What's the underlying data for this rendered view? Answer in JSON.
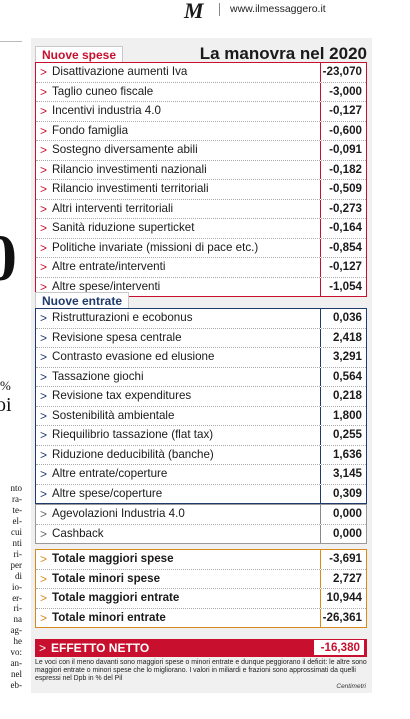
{
  "masthead": {
    "logo": "M",
    "site": "www.ilmessaggero.it"
  },
  "left_fragment": {
    "big_number": "0",
    "small_text": "%",
    "heading_text": "oi",
    "text_lines": [
      "nto",
      "ra-",
      "te-",
      "el-",
      "cui",
      "nti",
      "ri-",
      "per",
      "di",
      "io-",
      "er-",
      "ri-",
      "na",
      "ag-",
      "he",
      "vo:",
      "an-",
      "nel",
      "eb-"
    ]
  },
  "infographic": {
    "spese_tab": "Nuove spese",
    "title": "La manovra nel 2020",
    "spese": [
      {
        "label": "Disattivazione aumenti Iva",
        "value": "-23,070"
      },
      {
        "label": "Taglio cuneo fiscale",
        "value": "-3,000"
      },
      {
        "label": "Incentivi industria 4.0",
        "value": "-0,127"
      },
      {
        "label": "Fondo famiglia",
        "value": "-0,600"
      },
      {
        "label": "Sostegno diversamente abili",
        "value": "-0,091"
      },
      {
        "label": "Rilancio investimenti nazionali",
        "value": "-0,182"
      },
      {
        "label": "Rilancio investimenti territoriali",
        "value": "-0,509"
      },
      {
        "label": "Altri interventi territoriali",
        "value": "-0,273"
      },
      {
        "label": "Sanità riduzione superticket",
        "value": "-0,164"
      },
      {
        "label": "Politiche invariate (missioni di pace etc.)",
        "value": "-0,854"
      },
      {
        "label": "Altre entrate/interventi",
        "value": "-0,127"
      },
      {
        "label": "Altre spese/interventi",
        "value": "-1,054"
      }
    ],
    "entrate_tab": "Nuove entrate",
    "entrate": [
      {
        "label": "Ristrutturazioni e ecobonus",
        "value": "0,036"
      },
      {
        "label": "Revisione spesa centrale",
        "value": "2,418"
      },
      {
        "label": "Contrasto evasione ed elusione",
        "value": "3,291"
      },
      {
        "label": "Tassazione giochi",
        "value": "0,564"
      },
      {
        "label": "Revisione tax expenditures",
        "value": "0,218"
      },
      {
        "label": "Sostenibilità ambientale",
        "value": "1,800"
      },
      {
        "label": "Riequilibrio tassazione (flat tax)",
        "value": "0,255"
      },
      {
        "label": "Riduzione deducibilità (banche)",
        "value": "1,636"
      },
      {
        "label": "Altre entrate/coperture",
        "value": "3,145"
      },
      {
        "label": "Altre spese/coperture",
        "value": "0,309"
      }
    ],
    "altre": [
      {
        "label": "Agevolazioni Industria 4.0",
        "value": "0,000"
      },
      {
        "label": "Cashback",
        "value": "0,000"
      }
    ],
    "totali": [
      {
        "label": "Totale maggiori spese",
        "value": "-3,691"
      },
      {
        "label": "Totale minori spese",
        "value": "2,727"
      },
      {
        "label": "Totale maggiori entrate",
        "value": "10,944"
      },
      {
        "label": "Totale minori entrate",
        "value": "-26,361"
      }
    ],
    "effetto": {
      "label": "EFFETTO NETTO",
      "value": "-16,380"
    },
    "note": "Le voci con il meno davanti sono maggiori spese o minori entrate e dunque peggiorano il deficit: le altre sono maggiori entrate o minori spese che lo migliorano. I valori in miliardi e frazioni sono approssimati da quelli espressi nel Dpb in % del Pil",
    "credit": "Centimetri"
  },
  "colors": {
    "red": "#c8102e",
    "blue": "#1f3a6e",
    "orange": "#d98a1c",
    "panel_bg": "#f0f0f0"
  }
}
